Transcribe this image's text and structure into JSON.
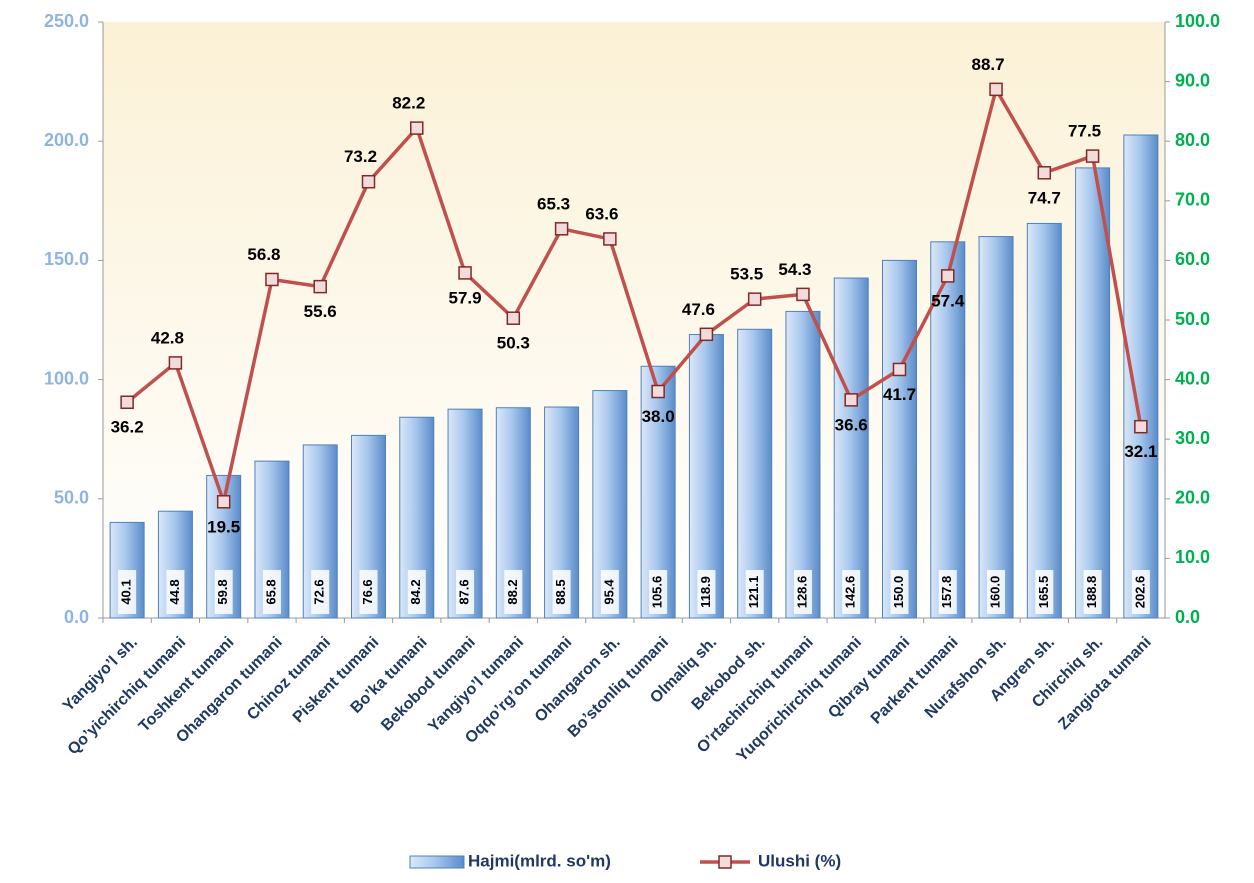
{
  "chart_data": {
    "type": "combo",
    "categories": [
      "Yangiyo’l sh.",
      "Qo’yichirchiq tumani",
      "Toshkent tumani",
      "Ohangaron tumani",
      "Chinoz tumani",
      "Piskent tumani",
      "Bo’ka tumani",
      "Bekobod tumani",
      "Yangiyo’l tumani",
      "Oqqo’rg’on tumani",
      "Ohangaron sh.",
      "Bo’stonliq tumani",
      "Olmaliq sh.",
      "Bekobod sh.",
      "O’rtachirchiq tumani",
      "Yuqorichirchiq tumani",
      "Qibray tumani",
      "Parkent tumani",
      "Nurafshon sh.",
      "Angren sh.",
      "Chirchiq sh.",
      "Zangiota tumani"
    ],
    "series": [
      {
        "name": "Hajmi(mlrd. so'm)",
        "type": "bar",
        "color": "#6f9fd8",
        "values": [
          40.1,
          44.8,
          59.8,
          65.8,
          72.6,
          76.6,
          84.2,
          87.6,
          88.2,
          88.5,
          95.4,
          105.6,
          118.9,
          121.1,
          128.6,
          142.6,
          150.0,
          157.8,
          160.0,
          165.5,
          188.8,
          202.6
        ],
        "value_labels": [
          "40.1",
          "44.8",
          "59.8",
          "65.8",
          "72.6",
          "76.6",
          "84.2",
          "87.6",
          "88.2",
          "88.5",
          "95.4",
          "105.6",
          "118.9",
          "121.1",
          "128.6",
          "142.6",
          "150.0",
          "157.8",
          "160.0",
          "165.5",
          "188.8",
          "202.6"
        ]
      },
      {
        "name": "Ulushi (%)",
        "type": "line",
        "axis": "y2",
        "color": "#c0504d",
        "values": [
          36.2,
          42.8,
          19.5,
          56.8,
          55.6,
          73.2,
          82.2,
          57.9,
          50.3,
          65.3,
          63.6,
          38.0,
          47.6,
          53.5,
          54.3,
          36.6,
          41.7,
          57.4,
          88.7,
          74.7,
          77.5,
          32.1
        ],
        "value_labels": [
          "36.2",
          "42.8",
          "19.5",
          "56.8",
          "55.6",
          "73.2",
          "82.2",
          "57.9",
          "50.3",
          "65.3",
          "63.6",
          "38.0",
          "47.6",
          "53.5",
          "54.3",
          "36.6",
          "41.7",
          "57.4",
          "88.7",
          "74.7",
          "77.5",
          "32.1"
        ]
      }
    ],
    "ylim": [
      0,
      250
    ],
    "yticks": [
      {
        "value": 0,
        "label": "0.0"
      },
      {
        "value": 50,
        "label": "50.0"
      },
      {
        "value": 100,
        "label": "100.0"
      },
      {
        "value": 150,
        "label": "150.0"
      },
      {
        "value": 200,
        "label": "200.0"
      },
      {
        "value": 250,
        "label": "250.0"
      }
    ],
    "y2lim": [
      0,
      100
    ],
    "y2ticks": [
      {
        "value": 0,
        "label": "0.0"
      },
      {
        "value": 10,
        "label": "10.0"
      },
      {
        "value": 20,
        "label": "20.0"
      },
      {
        "value": 30,
        "label": "30.0"
      },
      {
        "value": 40,
        "label": "40.0"
      },
      {
        "value": 50,
        "label": "50.0"
      },
      {
        "value": 60,
        "label": "60.0"
      },
      {
        "value": 70,
        "label": "70.0"
      },
      {
        "value": 80,
        "label": "80.0"
      },
      {
        "value": 90,
        "label": "90.0"
      },
      {
        "value": 100,
        "label": "100.0"
      }
    ],
    "legend": "bottom"
  }
}
